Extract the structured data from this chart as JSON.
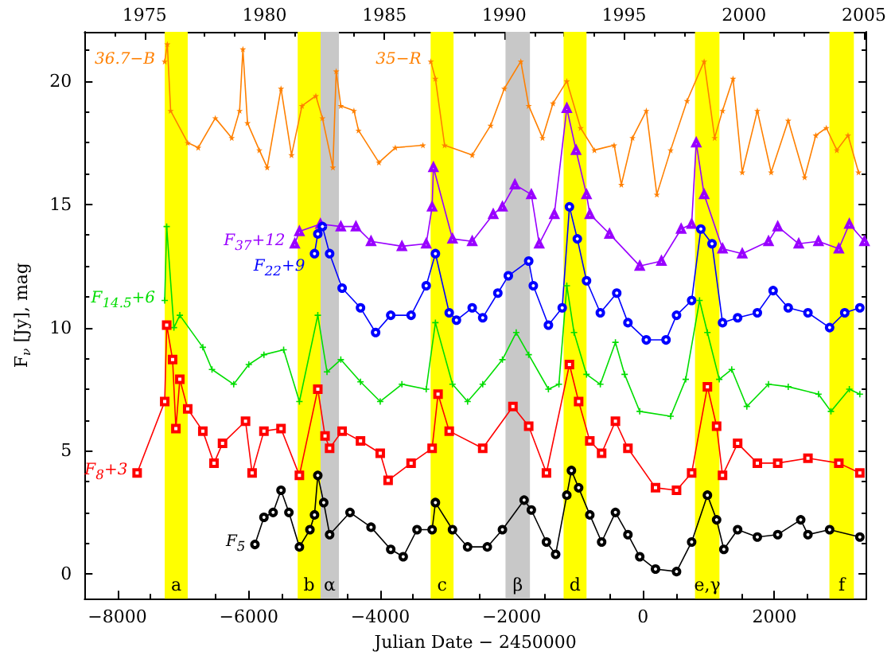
{
  "chart_data": {
    "type": "line",
    "xlabel": "Julian Date − 2450000",
    "ylabel": "F$_{ν}$ [Jy], mag",
    "xlim": [
      -8500,
      3400
    ],
    "xticks": [
      -8000,
      -6000,
      -4000,
      -2000,
      0,
      2000
    ],
    "x2lim": [
      1972.5,
      2005.1
    ],
    "x2ticks": [
      1975,
      1980,
      1985,
      1990,
      1995,
      2000,
      2005
    ],
    "ylim": [
      -1,
      22
    ],
    "yticks": [
      0,
      5,
      10,
      15,
      20
    ],
    "line_style": "solid",
    "series": [
      {
        "name": "36.7−B",
        "color": "#ff8000",
        "marker": "star",
        "x": [
          -7280,
          -7240,
          -7190,
          -6930,
          -6770,
          -6510,
          -6260,
          -6140,
          -6090,
          -6020,
          -5840,
          -5720,
          -5510,
          -5350,
          -5190,
          -4980,
          -4880,
          -4720,
          -4670,
          -4600,
          -4400,
          -4330,
          -4020,
          -3770,
          -3350
        ],
        "values": [
          20.8,
          21.5,
          18.8,
          17.5,
          17.3,
          18.5,
          17.7,
          18.8,
          21.3,
          18.3,
          17.2,
          16.5,
          19.7,
          17.0,
          19.0,
          19.4,
          18.5,
          16.5,
          20.4,
          19.0,
          18.8,
          18.0,
          16.7,
          17.3,
          17.4
        ]
      },
      {
        "name": "35−R",
        "color": "#ff8000",
        "marker": "star",
        "x": [
          -3230,
          -3160,
          -3020,
          -2600,
          -2320,
          -2110,
          -1860,
          -1740,
          -1530,
          -1370,
          -1160,
          -950,
          -740,
          -440,
          -330,
          -160,
          50,
          210,
          420,
          670,
          930,
          1090,
          1210,
          1370,
          1510,
          1740,
          1950,
          2210,
          2460,
          2630,
          2790,
          2950,
          3120,
          3280
        ],
        "values": [
          20.8,
          20.1,
          17.4,
          17.0,
          18.2,
          19.7,
          20.8,
          19.0,
          17.7,
          19.1,
          20.0,
          18.1,
          17.2,
          17.4,
          15.8,
          17.7,
          18.8,
          15.4,
          17.2,
          19.2,
          20.8,
          17.7,
          18.8,
          20.1,
          16.3,
          18.8,
          16.3,
          18.4,
          16.1,
          17.8,
          18.1,
          17.2,
          17.8,
          16.3
        ]
      },
      {
        "name": "F$_{37}$+12",
        "color": "#9900ff",
        "marker": "triangle",
        "x": [
          -5300,
          -5230,
          -4910,
          -4600,
          -4370,
          -4140,
          -3670,
          -3300,
          -3210,
          -3190,
          -2900,
          -2600,
          -2280,
          -2140,
          -1950,
          -1700,
          -1580,
          -1350,
          -1160,
          -1020,
          -860,
          -810,
          -510,
          -50,
          280,
          580,
          740,
          810,
          930,
          1210,
          1510,
          1910,
          2050,
          2370,
          2670,
          2980,
          3140,
          3370
        ],
        "values": [
          13.4,
          13.9,
          14.2,
          14.1,
          14.1,
          13.5,
          13.3,
          13.4,
          14.9,
          16.5,
          13.6,
          13.5,
          14.6,
          14.9,
          15.8,
          15.4,
          13.4,
          14.6,
          18.9,
          17.2,
          15.4,
          14.6,
          13.8,
          12.5,
          12.7,
          14.0,
          14.2,
          17.5,
          15.4,
          13.2,
          13.0,
          13.5,
          14.1,
          13.4,
          13.5,
          13.2,
          14.2,
          13.5
        ]
      },
      {
        "name": "F$_{22}$+9",
        "color": "#0000ff",
        "marker": "circle",
        "x": [
          -5000,
          -4950,
          -4880,
          -4770,
          -4580,
          -4300,
          -4070,
          -3840,
          -3530,
          -3300,
          -3160,
          -2950,
          -2840,
          -2600,
          -2440,
          -2210,
          -2050,
          -1740,
          -1670,
          -1440,
          -1230,
          -1120,
          -1000,
          -860,
          -650,
          -400,
          -230,
          50,
          350,
          510,
          740,
          880,
          1050,
          1210,
          1440,
          1740,
          1980,
          2210,
          2510,
          2840,
          3070,
          3300
        ],
        "values": [
          13.0,
          13.8,
          14.1,
          13.0,
          11.6,
          10.8,
          9.8,
          10.5,
          10.5,
          11.7,
          13.0,
          10.6,
          10.3,
          10.8,
          10.4,
          11.4,
          12.1,
          12.7,
          11.7,
          10.1,
          10.8,
          14.9,
          13.6,
          11.9,
          10.6,
          11.4,
          10.2,
          9.5,
          9.5,
          10.5,
          11.1,
          14.0,
          13.4,
          10.2,
          10.4,
          10.6,
          11.5,
          10.8,
          10.6,
          10.0,
          10.6,
          10.8
        ]
      },
      {
        "name": "F$_{14.5}$+6",
        "color": "#00dd00",
        "marker": "cross",
        "x": [
          -7280,
          -7250,
          -7140,
          -7050,
          -6700,
          -6560,
          -6230,
          -6000,
          -5770,
          -5470,
          -5230,
          -4950,
          -4810,
          -4600,
          -4300,
          -4000,
          -3670,
          -3300,
          -3160,
          -2900,
          -2670,
          -2440,
          -2140,
          -1930,
          -1740,
          -1440,
          -1280,
          -1160,
          -1050,
          -860,
          -650,
          -420,
          -280,
          -50,
          420,
          650,
          860,
          980,
          1160,
          1350,
          1580,
          1910,
          2210,
          2670,
          2860,
          3140,
          3300
        ],
        "values": [
          11.1,
          14.1,
          10.0,
          10.5,
          9.2,
          8.3,
          7.7,
          8.5,
          8.9,
          9.1,
          7.0,
          10.5,
          8.2,
          8.7,
          7.8,
          7.0,
          7.7,
          7.5,
          10.2,
          7.7,
          7.0,
          7.7,
          8.7,
          9.8,
          8.9,
          7.5,
          7.7,
          11.7,
          9.8,
          8.1,
          7.7,
          9.4,
          8.1,
          6.6,
          6.4,
          7.9,
          11.1,
          9.8,
          7.9,
          8.3,
          6.8,
          7.7,
          7.6,
          7.3,
          6.6,
          7.5,
          7.3
        ]
      },
      {
        "name": "F$_{8}$+3",
        "color": "#ff0000",
        "marker": "square",
        "x": [
          -7700,
          -7280,
          -7250,
          -7160,
          -7110,
          -7050,
          -6930,
          -6700,
          -6530,
          -6400,
          -6050,
          -5950,
          -5770,
          -5510,
          -5230,
          -4950,
          -4840,
          -4770,
          -4580,
          -4300,
          -4000,
          -3880,
          -3530,
          -3210,
          -3120,
          -2950,
          -2440,
          -1980,
          -1740,
          -1470,
          -1120,
          -980,
          -810,
          -630,
          -420,
          -230,
          190,
          510,
          740,
          980,
          1120,
          1210,
          1440,
          1740,
          2050,
          2510,
          2980,
          3300
        ],
        "values": [
          4.1,
          7.0,
          10.1,
          8.7,
          5.9,
          7.9,
          6.7,
          5.8,
          4.5,
          5.3,
          6.2,
          4.1,
          5.8,
          5.9,
          4.0,
          7.5,
          5.6,
          5.1,
          5.8,
          5.4,
          4.9,
          3.8,
          4.5,
          5.1,
          7.3,
          5.8,
          5.1,
          6.8,
          6.0,
          4.1,
          8.5,
          7.0,
          5.4,
          4.9,
          6.2,
          5.1,
          3.5,
          3.4,
          4.1,
          7.6,
          6.0,
          4.0,
          5.3,
          4.5,
          4.5,
          4.7,
          4.5,
          4.1
        ]
      },
      {
        "name": "F$_{5}$",
        "color": "#000000",
        "marker": "circle",
        "x": [
          -5907,
          -5770,
          -5630,
          -5510,
          -5390,
          -5230,
          -5070,
          -5000,
          -4950,
          -4860,
          -4770,
          -4460,
          -4140,
          -3840,
          -3650,
          -3440,
          -3210,
          -3160,
          -2900,
          -2670,
          -2370,
          -2140,
          -1810,
          -1700,
          -1470,
          -1330,
          -1160,
          -1090,
          -980,
          -810,
          -630,
          -420,
          -230,
          -50,
          190,
          510,
          740,
          980,
          1120,
          1230,
          1440,
          1740,
          2050,
          2400,
          2510,
          2840,
          3300
        ],
        "values": [
          1.2,
          2.3,
          2.5,
          3.4,
          2.5,
          1.1,
          1.8,
          2.4,
          4.0,
          2.9,
          1.6,
          2.5,
          1.9,
          1.0,
          0.7,
          1.8,
          1.8,
          2.9,
          1.8,
          1.1,
          1.1,
          1.8,
          3.0,
          2.6,
          1.3,
          0.8,
          3.2,
          4.2,
          3.5,
          2.4,
          1.3,
          2.5,
          1.6,
          0.7,
          0.2,
          0.1,
          1.3,
          3.2,
          2.2,
          1.0,
          1.8,
          1.5,
          1.6,
          2.2,
          1.6,
          1.8,
          1.5
        ]
      }
    ],
    "bands": [
      {
        "axis": "x",
        "from": -7280,
        "to": -6930,
        "label": "a",
        "color": "#ffff00"
      },
      {
        "axis": "x",
        "from": -5256,
        "to": -4907,
        "label": "b",
        "color": "#ffff00"
      },
      {
        "axis": "x",
        "from": -4907,
        "to": -4628,
        "label": "α",
        "color": "#c8c8c8"
      },
      {
        "axis": "x",
        "from": -3233,
        "to": -2884,
        "label": "c",
        "color": "#ffff00"
      },
      {
        "axis": "x",
        "from": -2093,
        "to": -1721,
        "label": "β",
        "color": "#c8c8c8"
      },
      {
        "axis": "x",
        "from": -1209,
        "to": -860,
        "label": "d",
        "color": "#ffff00"
      },
      {
        "axis": "x",
        "from": 791,
        "to": 1163,
        "label": "e,γ",
        "color": "#ffff00"
      },
      {
        "axis": "x",
        "from": 2837,
        "to": 3209,
        "label": "f",
        "color": "#ffff00"
      }
    ]
  }
}
